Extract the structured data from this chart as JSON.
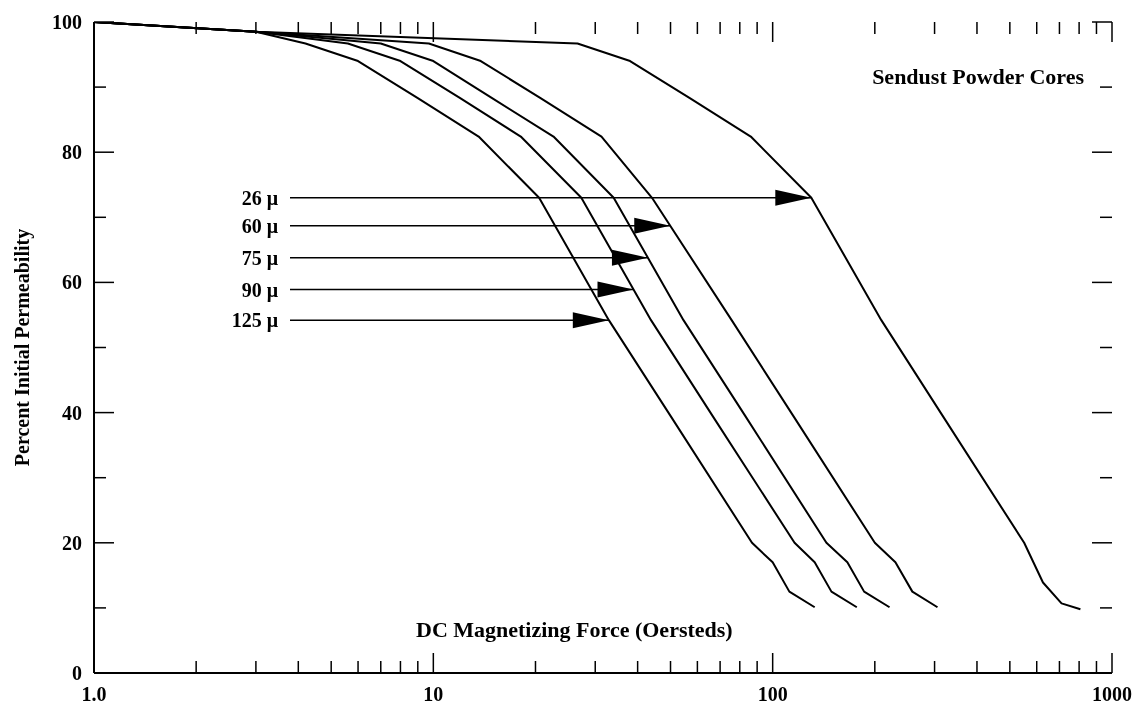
{
  "chart_data": {
    "type": "line",
    "title": "Sendust Powder Cores",
    "xlabel": "DC Magnetizing Force (Oersteds)",
    "ylabel": "Percent Initial Permeability",
    "log": "x",
    "xlim": [
      1,
      1000
    ],
    "ylim": [
      0,
      100
    ],
    "marker": "none",
    "line_style": "solid",
    "grid": false,
    "legend": false,
    "xticks": [
      {
        "value": 1,
        "label": "1.0"
      },
      {
        "value": 2,
        "label": null
      },
      {
        "value": 3,
        "label": null
      },
      {
        "value": 4,
        "label": null
      },
      {
        "value": 5,
        "label": null
      },
      {
        "value": 6,
        "label": null
      },
      {
        "value": 7,
        "label": null
      },
      {
        "value": 8,
        "label": null
      },
      {
        "value": 9,
        "label": null
      },
      10,
      {
        "value": 20,
        "label": null
      },
      {
        "value": 30,
        "label": null
      },
      {
        "value": 40,
        "label": null
      },
      {
        "value": 50,
        "label": null
      },
      {
        "value": 60,
        "label": null
      },
      {
        "value": 70,
        "label": null
      },
      {
        "value": 80,
        "label": null
      },
      {
        "value": 90,
        "label": null
      },
      100,
      {
        "value": 200,
        "label": null
      },
      {
        "value": 300,
        "label": null
      },
      {
        "value": 400,
        "label": null
      },
      {
        "value": 500,
        "label": null
      },
      {
        "value": 600,
        "label": null
      },
      {
        "value": 700,
        "label": null
      },
      {
        "value": 800,
        "label": null
      },
      {
        "value": 900,
        "label": null
      },
      1000
    ],
    "yticks": [
      0,
      {
        "value": 10,
        "label": null
      },
      20,
      {
        "value": 30,
        "label": null
      },
      40,
      {
        "value": 50,
        "label": null
      },
      60,
      {
        "value": 70,
        "label": null
      },
      80,
      {
        "value": 90,
        "label": null
      },
      100
    ],
    "series": [
      {
        "color": "#000000",
        "x": [
          1,
          3,
          26.6,
          38,
          57,
          86.2,
          130,
          209,
          317,
          551,
          626,
          710,
          807
        ],
        "values": [
          100,
          98.5,
          96.7,
          94,
          88.3,
          82.4,
          73,
          54.2,
          39.5,
          20,
          13.9,
          10.7,
          9.8
        ]
      },
      {
        "color": "#000000",
        "x": [
          1,
          3,
          9.7,
          13.8,
          20.7,
          31.3,
          44.1,
          75.7,
          115,
          200,
          230,
          258,
          306
        ],
        "values": [
          100,
          98.5,
          96.7,
          94,
          88.3,
          82.4,
          73,
          54.2,
          39.5,
          20,
          17,
          12.5,
          10.1
        ]
      },
      {
        "color": "#000000",
        "x": [
          1,
          3,
          7,
          10,
          14.9,
          22.6,
          34,
          54.6,
          83,
          144,
          166,
          186,
          221
        ],
        "values": [
          100,
          98.5,
          96.7,
          94,
          88.3,
          82.4,
          73,
          54.2,
          39.5,
          20,
          17,
          12.5,
          10.1
        ]
      },
      {
        "color": "#000000",
        "x": [
          1,
          3,
          5.6,
          8,
          12,
          18.1,
          27.3,
          43.8,
          66.5,
          116,
          133,
          149,
          177
        ],
        "values": [
          100,
          98.5,
          96.7,
          94,
          88.3,
          82.4,
          73,
          54.2,
          39.5,
          20,
          17,
          12.5,
          10.1
        ]
      },
      {
        "color": "#000000",
        "x": [
          1,
          3,
          4.2,
          6,
          9,
          13.6,
          20.5,
          32.9,
          50,
          86.9,
          100,
          112,
          133
        ],
        "values": [
          100,
          98.5,
          96.7,
          94,
          88.3,
          82.4,
          73,
          54.2,
          39.5,
          20,
          17,
          12.5,
          10.1
        ]
      }
    ],
    "annotations": [
      {
        "text": "26 μ",
        "x": 130,
        "y": 73
      },
      {
        "text": "60 μ",
        "x": 49.9,
        "y": 68.7
      },
      {
        "text": "75 μ",
        "x": 42.9,
        "y": 63.8
      },
      {
        "text": "90 μ",
        "x": 38.9,
        "y": 58.9
      },
      {
        "text": "125 μ",
        "x": 32.9,
        "y": 54.2
      }
    ]
  }
}
